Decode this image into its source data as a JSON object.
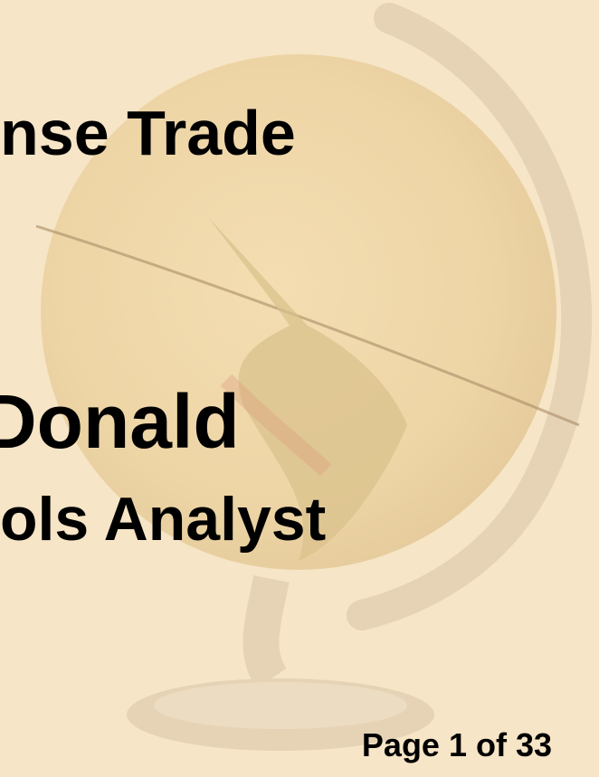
{
  "slide": {
    "title_fragment": "nse Trade",
    "name_fragment": "Donald",
    "role_fragment": "ols Analyst",
    "page_label": "Page 1 of 33"
  }
}
